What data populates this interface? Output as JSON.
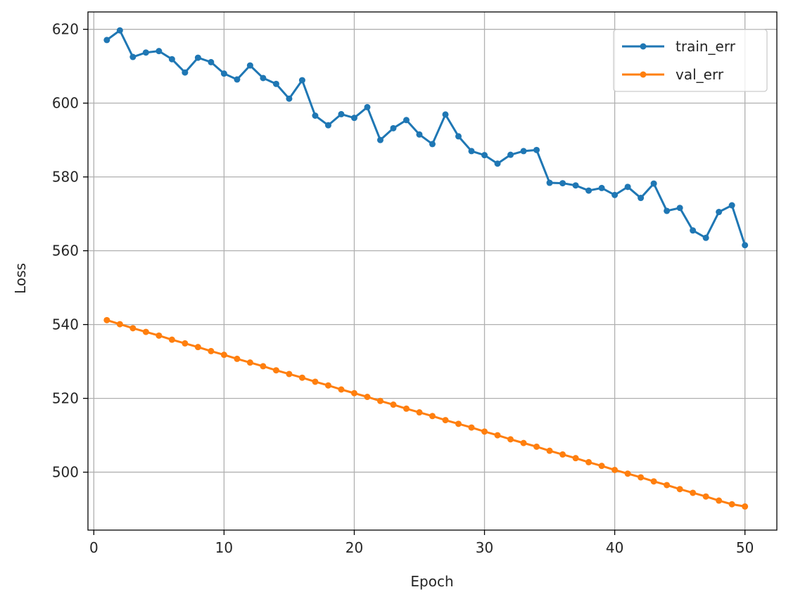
{
  "chart_data": {
    "type": "line",
    "title": "",
    "xlabel": "Epoch",
    "ylabel": "Loss",
    "xlim": [
      -0.45,
      52.45
    ],
    "ylim": [
      484.3,
      624.7
    ],
    "xticks": [
      0,
      10,
      20,
      30,
      40,
      50
    ],
    "yticks": [
      500,
      520,
      540,
      560,
      580,
      600,
      620
    ],
    "grid": true,
    "legend": "top-right",
    "x": [
      1,
      2,
      3,
      4,
      5,
      6,
      7,
      8,
      9,
      10,
      11,
      12,
      13,
      14,
      15,
      16,
      17,
      18,
      19,
      20,
      21,
      22,
      23,
      24,
      25,
      26,
      27,
      28,
      29,
      30,
      31,
      32,
      33,
      34,
      35,
      36,
      37,
      38,
      39,
      40,
      41,
      42,
      43,
      44,
      45,
      46,
      47,
      48,
      49,
      50
    ],
    "series": [
      {
        "name": "train_err",
        "color": "#1f77b4",
        "values": [
          617.1,
          619.7,
          612.5,
          613.7,
          614.1,
          611.9,
          608.3,
          612.3,
          611.1,
          608.0,
          606.4,
          610.2,
          606.8,
          605.2,
          601.2,
          606.2,
          596.6,
          594.0,
          597.0,
          596.0,
          598.9,
          590.0,
          593.2,
          595.4,
          591.5,
          588.9,
          596.9,
          591.0,
          587.0,
          585.9,
          583.6,
          586.0,
          587.0,
          587.3,
          578.4,
          578.3,
          577.7,
          576.3,
          577.0,
          575.1,
          577.3,
          574.3,
          578.2,
          570.8,
          571.6,
          565.5,
          563.5,
          570.5,
          572.3,
          561.5
        ]
      },
      {
        "name": "val_err",
        "color": "#ff7f0e",
        "values": [
          541.2,
          540.1,
          539.0,
          538.0,
          537.0,
          535.9,
          534.9,
          533.9,
          532.8,
          531.8,
          530.7,
          529.7,
          528.7,
          527.6,
          526.6,
          525.6,
          524.5,
          523.5,
          522.4,
          521.4,
          520.4,
          519.3,
          518.3,
          517.2,
          516.2,
          515.2,
          514.1,
          513.1,
          512.1,
          511.0,
          510.0,
          508.9,
          507.9,
          506.9,
          505.8,
          504.8,
          503.8,
          502.7,
          501.7,
          500.6,
          499.6,
          498.6,
          497.5,
          496.5,
          495.4,
          494.4,
          493.4,
          492.3,
          491.3,
          490.7
        ]
      }
    ]
  }
}
